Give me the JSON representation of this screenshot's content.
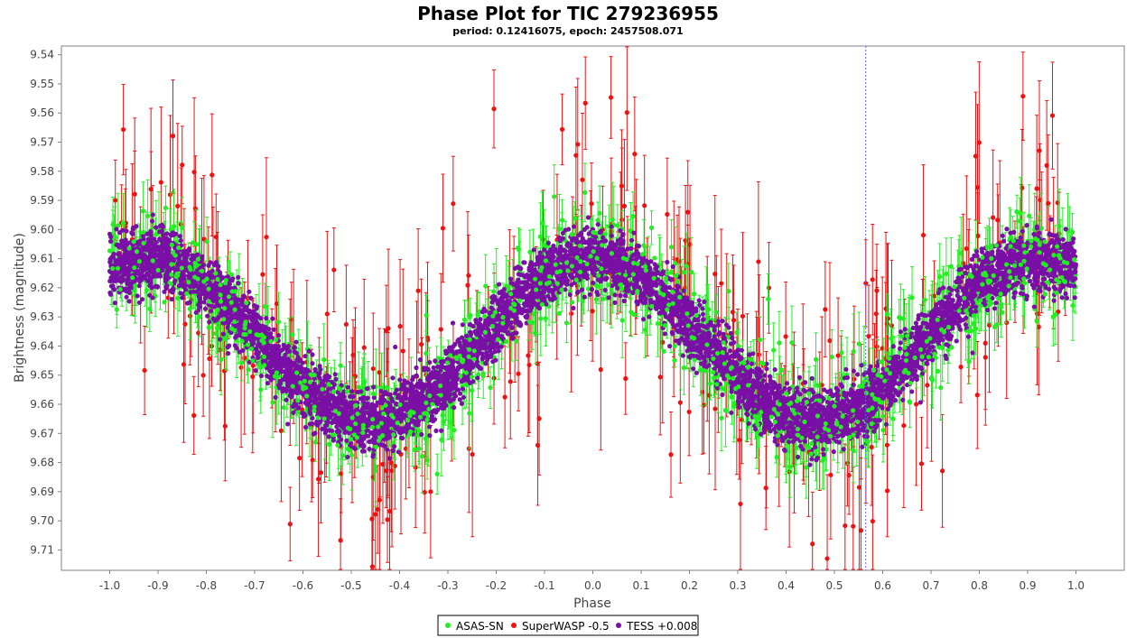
{
  "chart_data": {
    "type": "scatter",
    "title": "Phase Plot for TIC 279236955",
    "subtitle": "period: 0.12416075, epoch: 2457508.071",
    "xlabel": "Phase",
    "ylabel": "Brightness (magnitude)",
    "xlim": [
      -1.1,
      1.1
    ],
    "ylim": [
      9.537,
      9.717
    ],
    "y_inverted": true,
    "x_ticks": [
      "-1.0",
      "-0.9",
      "-0.8",
      "-0.7",
      "-0.6",
      "-0.5",
      "-0.4",
      "-0.3",
      "-0.2",
      "-0.1",
      "0.0",
      "0.1",
      "0.2",
      "0.3",
      "0.4",
      "0.5",
      "0.6",
      "0.7",
      "0.8",
      "0.9",
      "1.0"
    ],
    "y_ticks": [
      "9.54",
      "9.55",
      "9.56",
      "9.57",
      "9.58",
      "9.59",
      "9.60",
      "9.61",
      "9.62",
      "9.63",
      "9.64",
      "9.65",
      "9.66",
      "9.67",
      "9.68",
      "9.69",
      "9.70",
      "9.71"
    ],
    "marker_line_x": 0.565,
    "legend_placement": "bottom",
    "model": {
      "mean": 9.638,
      "amplitude": 0.028,
      "peak_phases": [
        -0.92,
        0.0,
        0.92
      ]
    },
    "series": [
      {
        "name": "ASAS-SN",
        "color": "#22ee22",
        "count": 900,
        "scatter": 0.009,
        "error_bar": 0.011
      },
      {
        "name": "SuperWASP -0.5",
        "color": "#ee1111",
        "count": 340,
        "scatter": 0.022,
        "error_bar": 0.024
      },
      {
        "name": "TESS +0.008",
        "color": "#7a0fa6",
        "count": 7000,
        "scatter": 0.005,
        "error_bar": 0
      }
    ]
  }
}
